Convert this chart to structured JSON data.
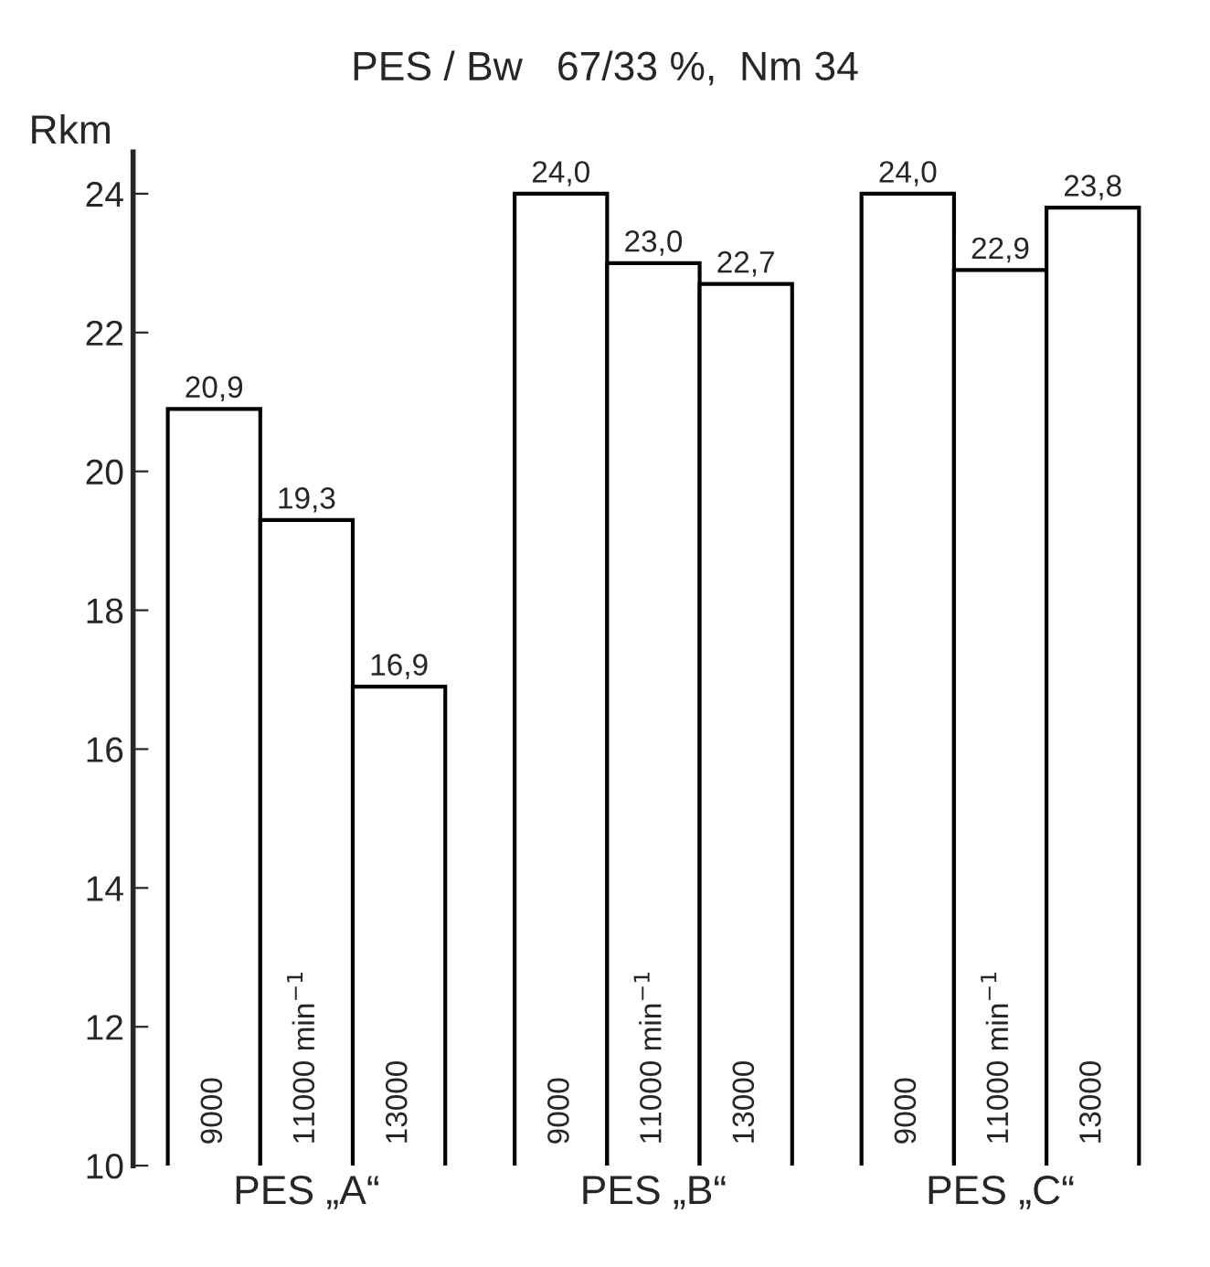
{
  "chart_data": {
    "type": "bar",
    "title": "PES / Bw   67/33 %,  Nm 34",
    "ylabel": "Rkm",
    "categories": [
      "PES „A“",
      "PES „B“",
      "PES „C“"
    ],
    "series": [
      {
        "name": "9000",
        "color": "#ffffff",
        "values": [
          20.9,
          24.0,
          24.0
        ],
        "value_labels": [
          "20,9",
          "24,0",
          "24,0"
        ]
      },
      {
        "name": "11000 min$^{−1}$",
        "color": "#ffffff",
        "values": [
          19.3,
          23.0,
          22.9
        ],
        "value_labels": [
          "19,3",
          "23,0",
          "22,9"
        ]
      },
      {
        "name": "13000",
        "color": "#ffffff",
        "values": [
          16.9,
          22.7,
          23.8
        ],
        "value_labels": [
          "16,9",
          "22,7",
          "23,8"
        ]
      }
    ],
    "ylim": [
      10,
      24.6
    ],
    "yticks": [
      10,
      12,
      14,
      16,
      18,
      20,
      22,
      24
    ],
    "grid": false,
    "legend": false
  }
}
